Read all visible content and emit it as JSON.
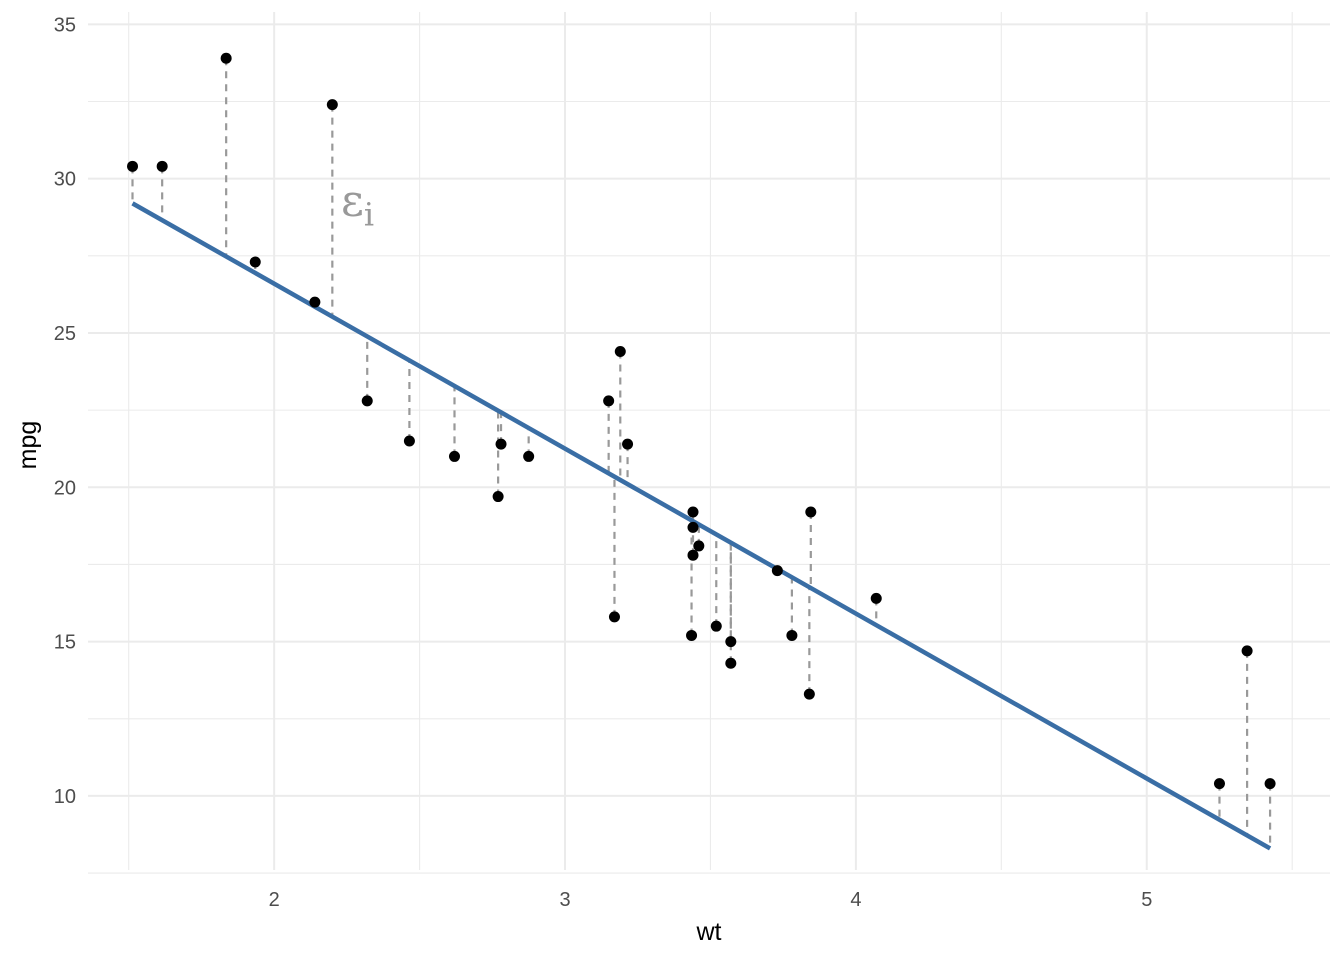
{
  "chart_data": {
    "type": "scatter",
    "xlabel": "wt",
    "ylabel": "mpg",
    "xlim": [
      1.36,
      5.63
    ],
    "ylim": [
      7.6,
      35.4
    ],
    "x_ticks_major": [
      2,
      3,
      4,
      5
    ],
    "x_ticks_minor": [
      1.5,
      2.5,
      3.5,
      4.5,
      5.5
    ],
    "y_ticks_major": [
      10,
      15,
      20,
      25,
      30,
      35
    ],
    "y_ticks_minor": [
      7.5,
      12.5,
      17.5,
      22.5,
      27.5,
      32.5
    ],
    "grid": true,
    "fit": {
      "intercept": 37.285,
      "slope": -5.344,
      "color": "#3a6ea5"
    },
    "residual_color": "#999999",
    "annotation": {
      "text": "ε",
      "subscript": "i",
      "x": 2.23,
      "y": 28.8
    },
    "points": [
      {
        "wt": 2.62,
        "mpg": 21.0
      },
      {
        "wt": 2.875,
        "mpg": 21.0
      },
      {
        "wt": 2.32,
        "mpg": 22.8
      },
      {
        "wt": 3.215,
        "mpg": 21.4
      },
      {
        "wt": 3.44,
        "mpg": 18.7
      },
      {
        "wt": 3.46,
        "mpg": 18.1
      },
      {
        "wt": 3.57,
        "mpg": 14.3
      },
      {
        "wt": 3.19,
        "mpg": 24.4
      },
      {
        "wt": 3.15,
        "mpg": 22.8
      },
      {
        "wt": 3.44,
        "mpg": 19.2
      },
      {
        "wt": 3.44,
        "mpg": 17.8
      },
      {
        "wt": 4.07,
        "mpg": 16.4
      },
      {
        "wt": 3.73,
        "mpg": 17.3
      },
      {
        "wt": 3.78,
        "mpg": 15.2
      },
      {
        "wt": 5.25,
        "mpg": 10.4
      },
      {
        "wt": 5.424,
        "mpg": 10.4
      },
      {
        "wt": 5.345,
        "mpg": 14.7
      },
      {
        "wt": 2.2,
        "mpg": 32.4
      },
      {
        "wt": 1.615,
        "mpg": 30.4
      },
      {
        "wt": 1.835,
        "mpg": 33.9
      },
      {
        "wt": 2.465,
        "mpg": 21.5
      },
      {
        "wt": 3.52,
        "mpg": 15.5
      },
      {
        "wt": 3.435,
        "mpg": 15.2
      },
      {
        "wt": 3.84,
        "mpg": 13.3
      },
      {
        "wt": 3.845,
        "mpg": 19.2
      },
      {
        "wt": 1.935,
        "mpg": 27.3
      },
      {
        "wt": 2.14,
        "mpg": 26.0
      },
      {
        "wt": 1.513,
        "mpg": 30.4
      },
      {
        "wt": 3.17,
        "mpg": 15.8
      },
      {
        "wt": 2.77,
        "mpg": 19.7
      },
      {
        "wt": 3.57,
        "mpg": 15.0
      },
      {
        "wt": 2.78,
        "mpg": 21.4
      }
    ]
  }
}
